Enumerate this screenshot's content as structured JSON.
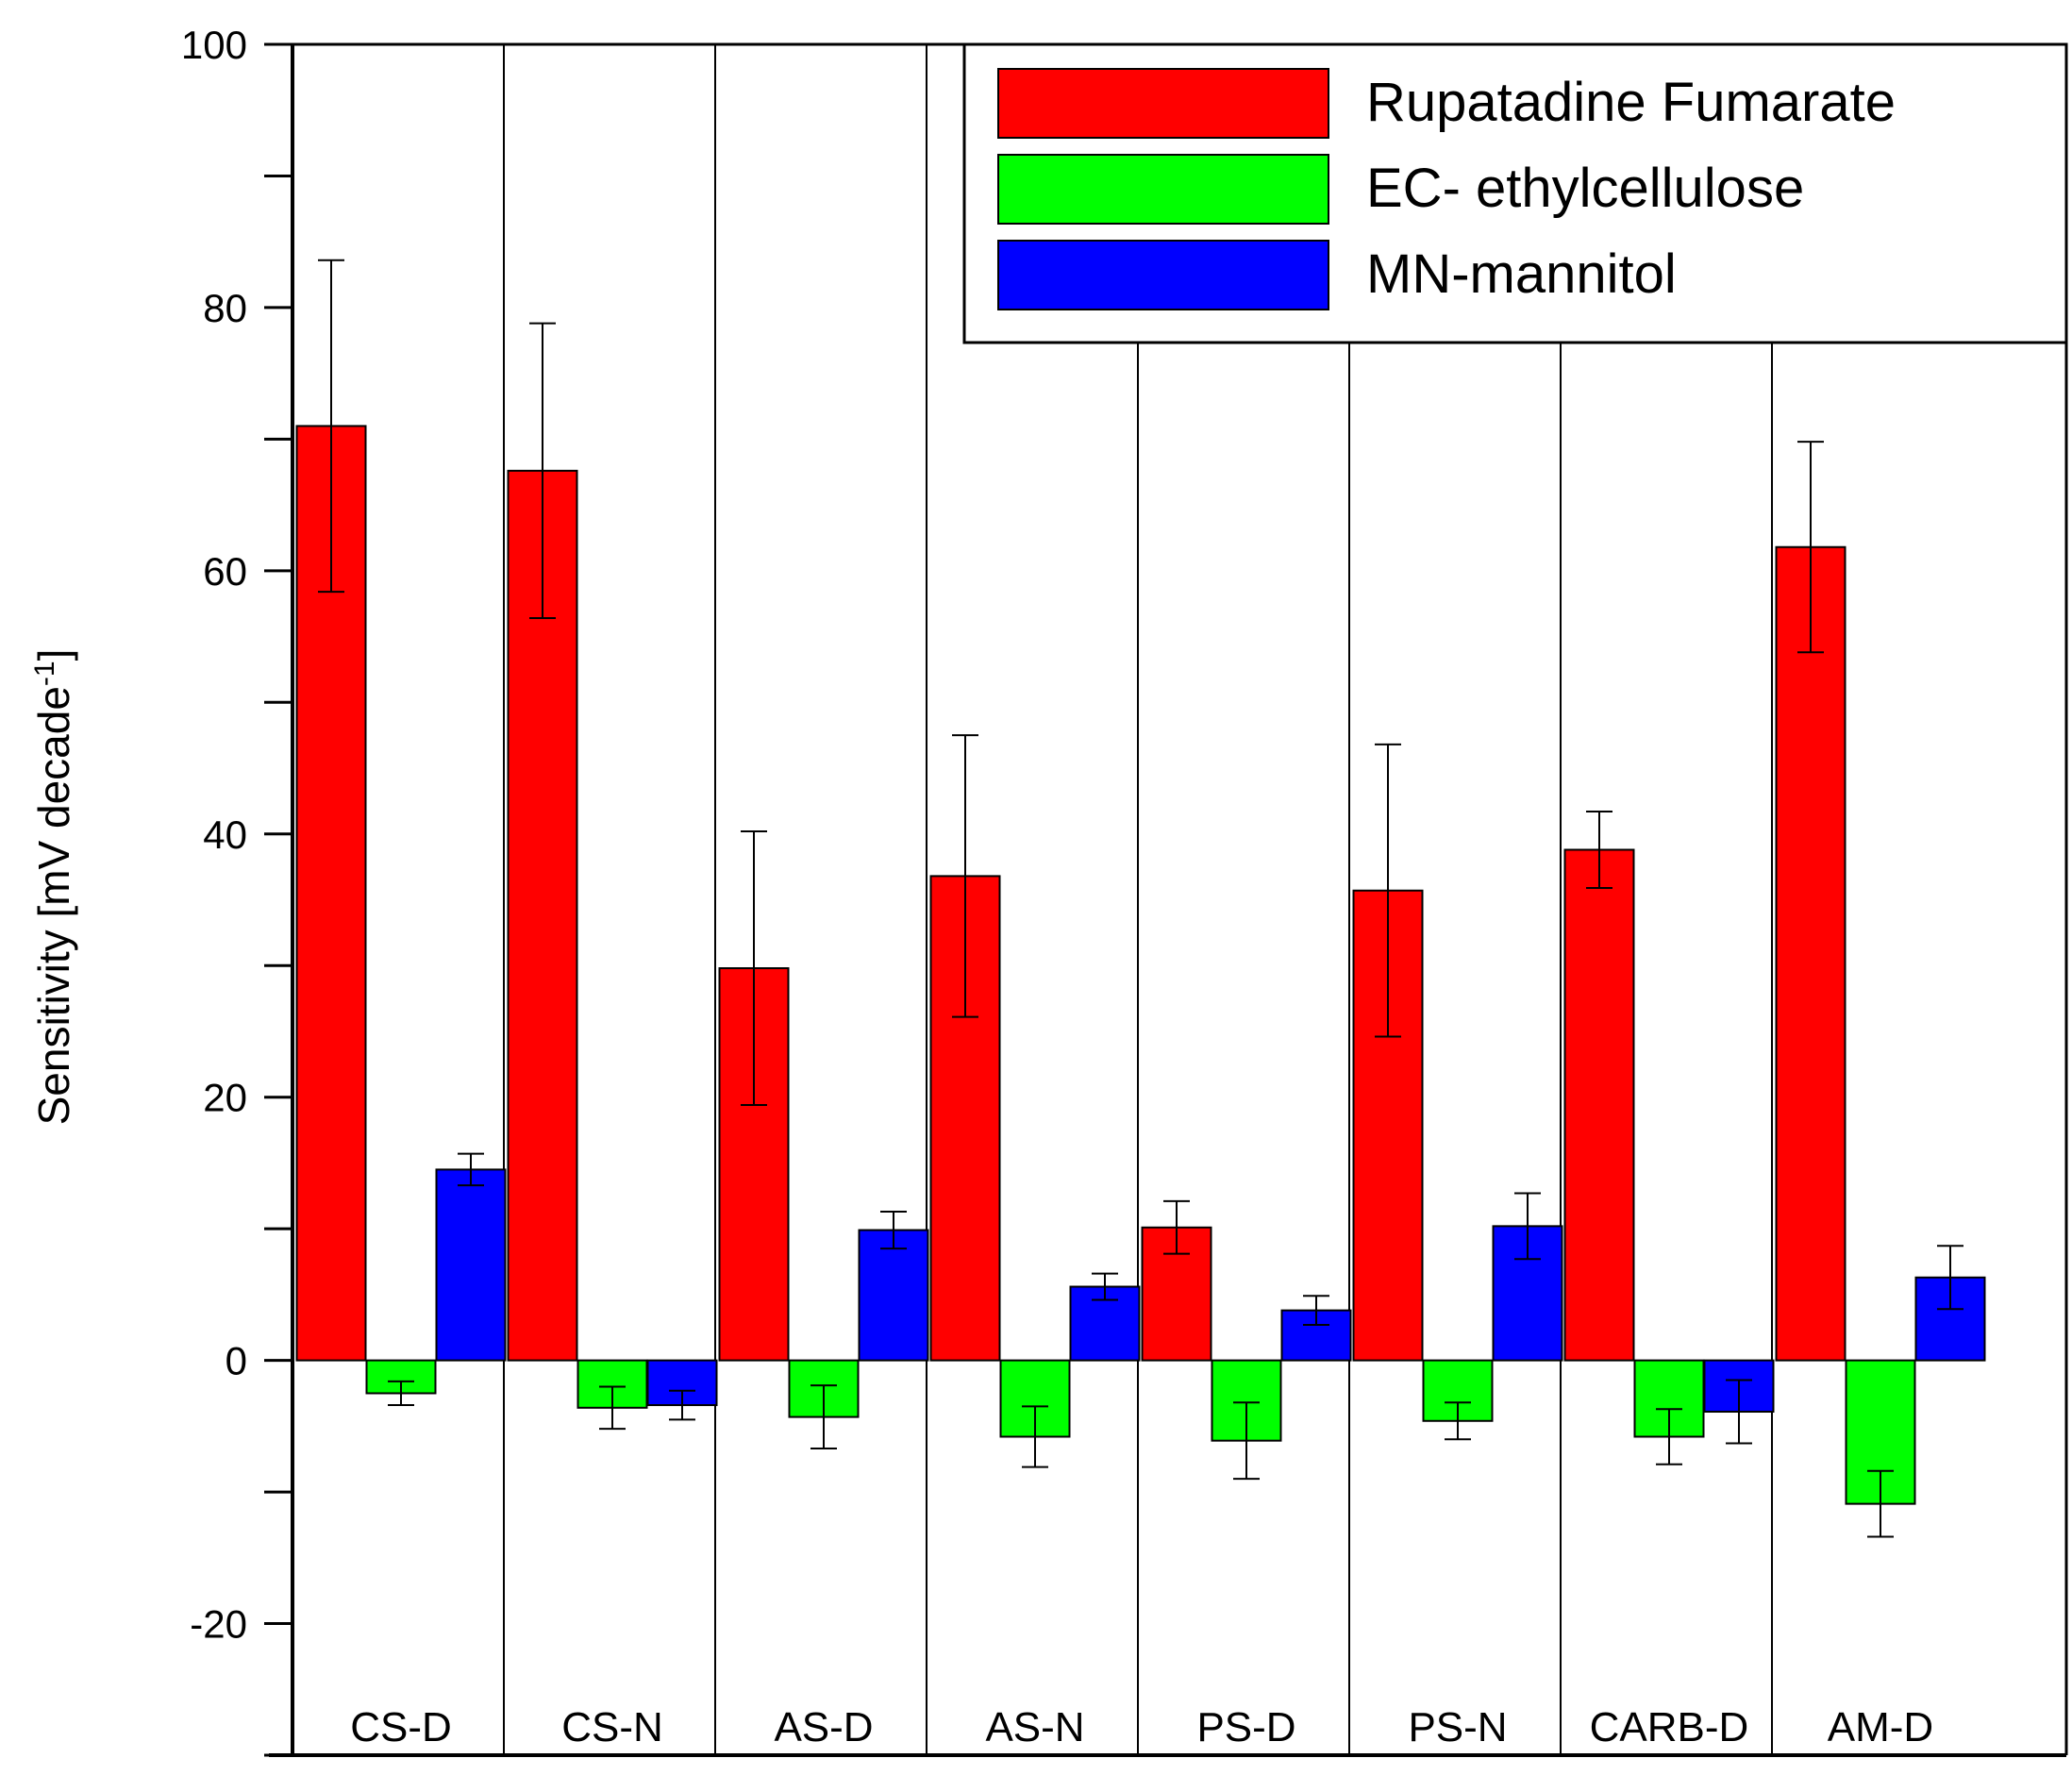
{
  "chart_data": {
    "type": "bar",
    "title": "",
    "xlabel": "",
    "ylabel": "Sensitivity [mV decade",
    "ylabel_sup": "-1",
    "ylabel_close": "]",
    "ylim": [
      -30,
      100
    ],
    "yticks": [
      -20,
      0,
      20,
      40,
      60,
      80,
      100
    ],
    "categories": [
      "CS-D",
      "CS-N",
      "AS-D",
      "AS-N",
      "PS-D",
      "PS-N",
      "CARB-D",
      "AM-D"
    ],
    "series": [
      {
        "name": "Rupatadine Fumarate",
        "color": "#ff0000",
        "values": [
          71,
          67.6,
          29.8,
          36.8,
          10.1,
          35.7,
          38.8,
          61.8
        ],
        "errors": [
          12.6,
          11.2,
          10.4,
          10.7,
          2.0,
          11.1,
          2.9,
          8.0
        ]
      },
      {
        "name": "EC- ethylcellulose",
        "color": "#00ff00",
        "values": [
          -2.5,
          -3.6,
          -4.3,
          -5.8,
          -6.1,
          -4.6,
          -5.8,
          -10.9
        ],
        "errors": [
          0.9,
          1.6,
          2.4,
          2.3,
          2.9,
          1.4,
          2.1,
          2.5
        ]
      },
      {
        "name": "MN-mannitol",
        "color": "#0000ff",
        "values": [
          14.5,
          -3.4,
          9.9,
          5.6,
          3.8,
          10.2,
          -3.9,
          6.3
        ],
        "errors": [
          1.2,
          1.1,
          1.4,
          1.0,
          1.1,
          2.5,
          2.4,
          2.4
        ]
      }
    ],
    "legend_position": "top-right",
    "grid": false
  }
}
